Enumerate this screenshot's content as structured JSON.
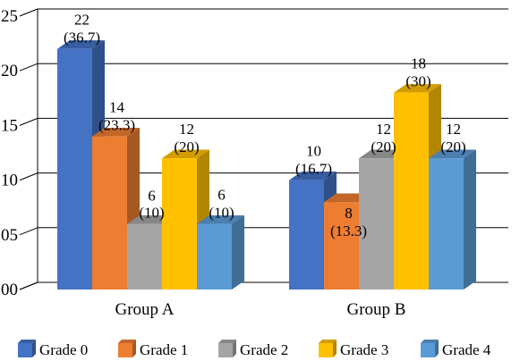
{
  "chart_data": {
    "type": "bar",
    "categories": [
      "Group A",
      "Group B"
    ],
    "series": [
      {
        "name": "Grade 0",
        "values": [
          22,
          10
        ],
        "labels": [
          [
            "22",
            "(36.7)"
          ],
          [
            "10",
            "(16.7)"
          ]
        ],
        "color": "#4472C4"
      },
      {
        "name": "Grade 1",
        "values": [
          14,
          8
        ],
        "labels": [
          [
            "14",
            "(23.3)"
          ],
          [
            "8",
            "(13.3)"
          ]
        ],
        "color": "#ED7D31"
      },
      {
        "name": "Grade 2",
        "values": [
          6,
          12
        ],
        "labels": [
          [
            "6",
            "(10)"
          ],
          [
            "12",
            "(20)"
          ]
        ],
        "color": "#A5A5A5"
      },
      {
        "name": "Grade 3",
        "values": [
          12,
          18
        ],
        "labels": [
          [
            "12",
            "(20)"
          ],
          [
            "18",
            "(30)"
          ]
        ],
        "color": "#FFC000"
      },
      {
        "name": "Grade 4",
        "values": [
          6,
          12
        ],
        "labels": [
          [
            "6",
            "(10)"
          ],
          [
            "12",
            "(20)"
          ]
        ],
        "color": "#5B9BD5"
      }
    ],
    "y_ticks": [
      "00",
      "05",
      "10",
      "15",
      "20",
      "25"
    ],
    "ylim": [
      0,
      25
    ],
    "grid": true,
    "three_d": true,
    "legend_position": "bottom"
  }
}
